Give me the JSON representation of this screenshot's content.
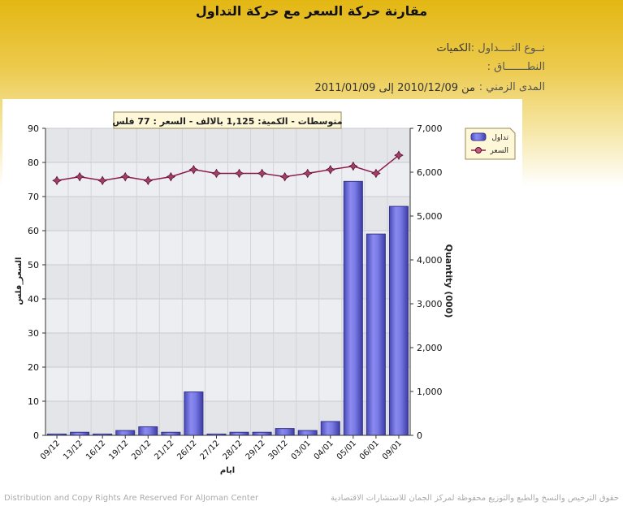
{
  "page": {
    "title": "مقارنة حركة السعر مع حركة التداول",
    "info": {
      "type_label": "نــوع التــــداول :",
      "type_value": "الكميات",
      "range_label": "النطـــــــاق :",
      "range_value": "",
      "period_label": "المدى الزمني :",
      "period_value": "من 2010/12/09 إلى 2011/01/09"
    },
    "footer_left": "Distribution and Copy Rights Are Reserved For AlJoman Center",
    "footer_right": "حقوق الترخيص والنسخ والطبع والتوزيع محفوظة لمركز الجمان للاستشارات الاقتصادية"
  },
  "chart_data": {
    "type": "bar",
    "title": "متوسطات - الكمية: 1,125 بالالف  - السعر : 77 فلس",
    "xlabel": "ايام",
    "ylabel_left": "السعر_فلس",
    "ylabel_right": "Quantity (000)",
    "categories": [
      "09/12",
      "13/12",
      "16/12",
      "19/12",
      "20/12",
      "21/12",
      "26/12",
      "27/12",
      "28/12",
      "29/12",
      "30/12",
      "03/01",
      "04/01",
      "05/01",
      "06/01",
      "09/01"
    ],
    "y_left_ticks": [
      "0",
      "10",
      "20",
      "30",
      "40",
      "50",
      "60",
      "70",
      "80",
      "90"
    ],
    "y_right_ticks": [
      "0",
      "1,000",
      "2,000",
      "3,000",
      "4,000",
      "5,000",
      "6,000",
      "7,000"
    ],
    "ylim_left": [
      0,
      90
    ],
    "ylim_right": [
      0,
      7000
    ],
    "series": [
      {
        "name": "تداول",
        "kind": "bar",
        "axis": "right",
        "color": "#7070e0",
        "values": [
          30,
          70,
          30,
          110,
          195,
          70,
          990,
          30,
          70,
          70,
          155,
          110,
          315,
          5790,
          4590,
          5220
        ]
      },
      {
        "name": "السعر",
        "kind": "line",
        "axis": "left",
        "color": "#8b1a4a",
        "values": [
          74.7,
          75.8,
          74.7,
          75.8,
          74.7,
          75.8,
          77.9,
          76.8,
          76.8,
          76.8,
          75.8,
          76.8,
          77.9,
          78.9,
          76.8,
          82.1
        ]
      }
    ],
    "legend": {
      "placement": "right",
      "items": [
        "تداول",
        "السعر"
      ]
    },
    "grid": true,
    "colors": {
      "bar": "#7070e0",
      "bar_dark": "#4040a0",
      "line": "#8b1a4a",
      "plot_bg": "#e4e5e9"
    }
  }
}
